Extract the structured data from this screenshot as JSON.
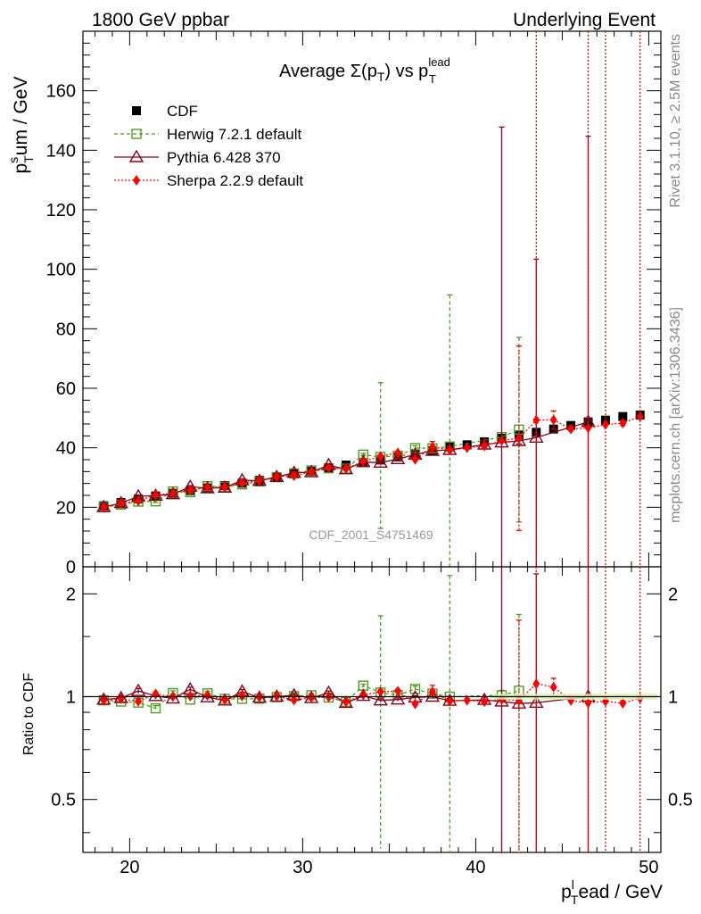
{
  "header": {
    "left": "1800 GeV ppbar",
    "right": "Underlying Event"
  },
  "side_labels": {
    "rivet": "Rivet 3.1.10, ≥ 2.5M events",
    "mcplots": "mcplots.cern.ch [arXiv:1306.3436]"
  },
  "watermark": "CDF_2001_S4751469",
  "chart_data": {
    "type": "scatter",
    "title": "Average Σ(p_T) vs p_T^lead",
    "xlabel": "p_T^lead / GeV",
    "ylabel": "p_T^sum / GeV",
    "ratio_ylabel": "Ratio to CDF",
    "xlim": [
      17.3,
      50.7
    ],
    "ylim": [
      0,
      180
    ],
    "ratio_ylim": [
      0.35,
      2.4
    ],
    "ratio_scale": "log",
    "x_ticks": [
      20,
      30,
      40,
      50
    ],
    "y_ticks": [
      0,
      20,
      40,
      60,
      80,
      100,
      120,
      140,
      160
    ],
    "ratio_ticks": [
      0.5,
      1,
      2
    ],
    "legend_position": "top-left",
    "x": [
      18.5,
      19.5,
      20.5,
      21.5,
      22.5,
      23.5,
      24.5,
      25.5,
      26.5,
      27.5,
      28.5,
      29.5,
      30.5,
      31.5,
      32.5,
      33.5,
      34.5,
      35.5,
      36.5,
      37.5,
      38.5,
      39.5,
      40.5,
      41.5,
      42.5,
      43.5,
      44.5,
      45.5,
      46.5,
      47.5,
      48.5,
      49.5
    ],
    "series": [
      {
        "name": "CDF",
        "color": "#000000",
        "marker": "square-filled",
        "values": [
          20.5,
          21.6,
          22.8,
          23.8,
          24.7,
          25.6,
          26.5,
          27.3,
          28.1,
          29.1,
          30.2,
          31.3,
          32.1,
          33.3,
          34.2,
          35.0,
          35.9,
          36.9,
          37.9,
          39.0,
          40.4,
          41.0,
          42.0,
          43.2,
          44.3,
          45.2,
          46.3,
          47.5,
          48.7,
          49.3,
          50.5,
          51.0
        ]
      },
      {
        "name": "Herwig 7.2.1 default",
        "color": "#4d9e1f",
        "marker": "square-open",
        "line": "dashed",
        "values": [
          20.0,
          20.9,
          21.9,
          22.0,
          25.3,
          25.1,
          27.1,
          26.9,
          27.7,
          28.7,
          30.1,
          31.4,
          32.4,
          33.1,
          33.0,
          37.7,
          36.9,
          37.3,
          39.9,
          39.8,
          40.4,
          null,
          null,
          43.6,
          46.1
        ],
        "err_up": [
          0.4,
          0.4,
          0.4,
          0.4,
          0.4,
          0.4,
          0.4,
          0.4,
          0.4,
          0.4,
          0.4,
          0.4,
          0.4,
          0.4,
          0.4,
          0.4,
          25.0,
          0.8,
          0.8,
          0.8,
          51.0,
          null,
          null,
          1.5,
          31.0
        ],
        "err_down": [
          0.4,
          0.4,
          0.4,
          0.4,
          0.4,
          0.4,
          0.4,
          0.4,
          0.4,
          0.4,
          0.4,
          0.4,
          0.4,
          0.4,
          0.4,
          0.4,
          24.0,
          0.8,
          0.8,
          0.8,
          40.4,
          null,
          null,
          1.5,
          31.0
        ]
      },
      {
        "name": "Pythia 6.428 370",
        "color": "#8b0019",
        "marker": "triangle-open",
        "line": "solid",
        "values": [
          20.1,
          21.4,
          23.7,
          23.9,
          24.4,
          26.9,
          26.4,
          26.6,
          29.1,
          28.9,
          30.2,
          31.6,
          31.8,
          34.2,
          32.8,
          35.2,
          35.0,
          36.2,
          37.7,
          39.0,
          39.3,
          null,
          41.1,
          41.8,
          42.3,
          43.4,
          null,
          null,
          48.7
        ],
        "err_up": [
          0.4,
          0.4,
          0.4,
          0.4,
          0.4,
          0.4,
          0.4,
          0.4,
          0.4,
          0.4,
          0.4,
          0.4,
          0.4,
          0.4,
          0.4,
          0.4,
          0.4,
          0.4,
          0.4,
          0.4,
          0.4,
          null,
          0.8,
          106.0,
          1.0,
          60.0,
          null,
          null,
          96.0
        ],
        "err_down": [
          0.4,
          0.4,
          0.4,
          0.4,
          0.4,
          0.4,
          0.4,
          0.4,
          0.4,
          0.4,
          0.4,
          0.4,
          0.4,
          0.4,
          0.4,
          0.4,
          0.4,
          0.4,
          0.4,
          0.4,
          0.4,
          null,
          0.8,
          41.8,
          1.0,
          43.4,
          null,
          null,
          48.7
        ]
      },
      {
        "name": "Sherpa 2.2.9 default",
        "color": "#ff0000",
        "marker": "diamond-filled",
        "line": "dotted",
        "values": [
          20.0,
          21.3,
          22.1,
          24.2,
          24.7,
          25.7,
          26.7,
          26.8,
          28.2,
          29.0,
          30.3,
          30.6,
          31.9,
          33.2,
          33.0,
          35.4,
          37.1,
          38.3,
          36.1,
          40.3,
          39.2,
          40.0,
          40.6,
          42.4,
          43.2,
          49.3,
          49.4,
          46.3,
          46.7,
          47.8,
          48.3,
          50.5
        ],
        "err_up": [
          0.4,
          0.4,
          0.4,
          0.4,
          0.4,
          0.4,
          0.4,
          0.4,
          0.4,
          0.4,
          0.4,
          0.4,
          0.4,
          0.4,
          0.4,
          0.4,
          0.5,
          0.5,
          0.5,
          1.8,
          0.5,
          0.5,
          0.5,
          0.6,
          31.0,
          160.0,
          3.0,
          0.7,
          140.0,
          160.0,
          0.8,
          160.0
        ],
        "err_down": [
          0.4,
          0.4,
          0.4,
          0.4,
          0.4,
          0.4,
          0.4,
          0.4,
          0.4,
          0.4,
          0.4,
          0.4,
          0.4,
          0.4,
          0.4,
          0.4,
          0.5,
          0.5,
          0.5,
          1.8,
          0.5,
          0.5,
          0.5,
          0.6,
          31.0,
          49.3,
          3.0,
          0.7,
          46.7,
          47.8,
          0.8,
          50.5
        ]
      }
    ]
  }
}
